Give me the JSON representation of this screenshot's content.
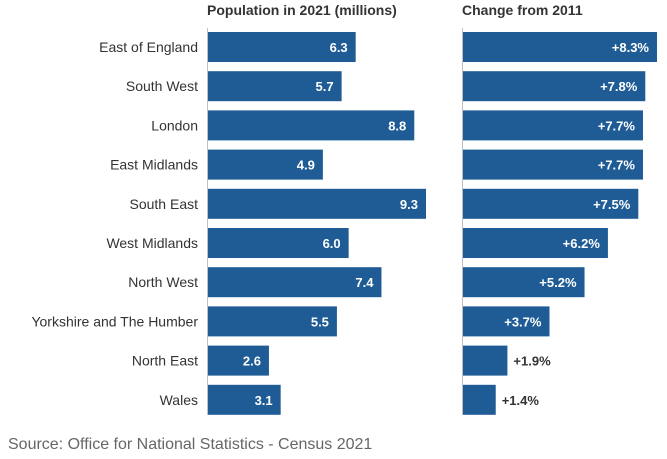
{
  "chart_data": {
    "type": "bar",
    "orientation": "horizontal",
    "categories": [
      "East of England",
      "South West",
      "London",
      "East Midlands",
      "South East",
      "West Midlands",
      "North West",
      "Yorkshire and The Humber",
      "North East",
      "Wales"
    ],
    "series": [
      {
        "name": "Population in 2021 (millions)",
        "values": [
          6.3,
          5.7,
          8.8,
          4.9,
          9.3,
          6.0,
          7.4,
          5.5,
          2.6,
          3.1
        ],
        "labels": [
          "6.3",
          "5.7",
          "8.8",
          "4.9",
          "9.3",
          "6.0",
          "7.4",
          "5.5",
          "2.6",
          "3.1"
        ],
        "xlim": [
          0,
          9.3
        ]
      },
      {
        "name": "Change from 2011",
        "values": [
          8.3,
          7.8,
          7.7,
          7.7,
          7.5,
          6.2,
          5.2,
          3.7,
          1.9,
          1.4
        ],
        "labels": [
          "+8.3%",
          "+7.8%",
          "+7.7%",
          "+7.7%",
          "+7.5%",
          "+6.2%",
          "+5.2%",
          "+3.7%",
          "+1.9%",
          "+1.4%"
        ],
        "xlim": [
          0,
          8.3
        ]
      }
    ],
    "bar_color": "#1f5c96",
    "title": "",
    "source": "Source: Office for National Statistics - Census 2021"
  }
}
